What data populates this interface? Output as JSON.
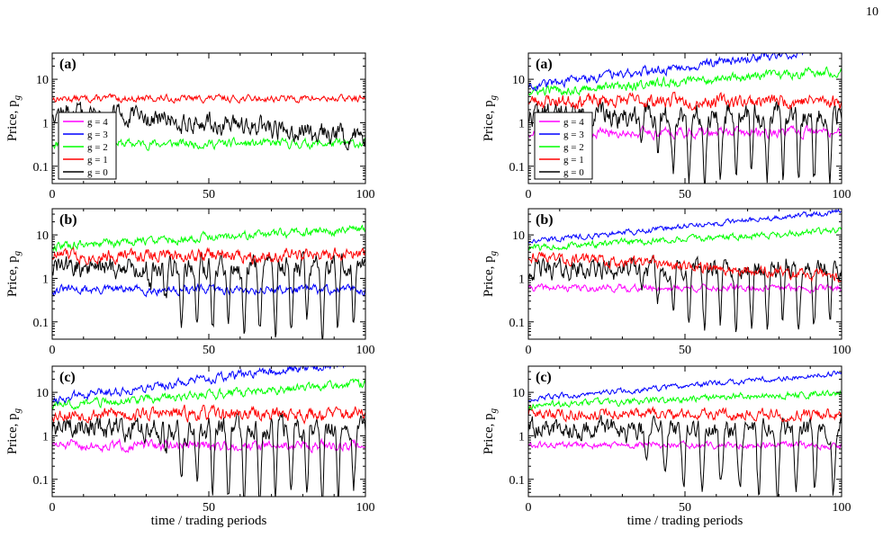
{
  "page": {
    "number": "10"
  },
  "legend": {
    "entries": [
      {
        "label": "g = 4",
        "color": "#ff00ff"
      },
      {
        "label": "g = 3",
        "color": "#0000ff"
      },
      {
        "label": "g = 2",
        "color": "#00ff00"
      },
      {
        "label": "g = 1",
        "color": "#ff0000"
      },
      {
        "label": "g = 0",
        "color": "#000000"
      }
    ]
  },
  "axes": {
    "ylabel": "Price, p",
    "ylabel_subscript": "g",
    "xlabel": "time / trading periods",
    "xticks": [
      0,
      50,
      100
    ],
    "xtick_labels": [
      "0",
      "50",
      "100"
    ],
    "yticks": [
      0.1,
      1,
      10
    ],
    "ytick_labels": [
      "0.1",
      "1",
      "10"
    ],
    "xlim": [
      0,
      100
    ],
    "ylim": [
      0.04,
      40
    ],
    "yscale": "log"
  },
  "chart_data": [
    {
      "type": "line",
      "panel_label": "(a)",
      "legend": true,
      "xlim": [
        0,
        100
      ],
      "ylim": [
        0.04,
        40
      ],
      "yscale": "log",
      "series": [
        {
          "name": "g = 2",
          "color": "#00ff00",
          "level": 0.33,
          "amp": 0.2,
          "seed": 11
        },
        {
          "name": "g = 0",
          "color": "#000000",
          "level": 1.9,
          "amp": 0.45,
          "trend": -0.6,
          "seed": 12
        },
        {
          "name": "g = 1",
          "color": "#ff0000",
          "level": 3.6,
          "amp": 0.15,
          "seed": 13
        }
      ]
    },
    {
      "type": "line",
      "panel_label": "(a)",
      "legend": true,
      "xlim": [
        0,
        100
      ],
      "ylim": [
        0.04,
        40
      ],
      "yscale": "log",
      "series": [
        {
          "name": "g = 4",
          "color": "#ff00ff",
          "level": 0.6,
          "amp": 0.22,
          "seed": 21
        },
        {
          "name": "g = 0",
          "color": "#000000",
          "level": 1.5,
          "amp": 0.5,
          "osc": 1.4,
          "period": 5,
          "oscStart": 30,
          "seed": 22
        },
        {
          "name": "g = 1",
          "color": "#ff0000",
          "level": 3.2,
          "amp": 0.3,
          "seed": 23
        },
        {
          "name": "g = 2",
          "color": "#00ff00",
          "level": 5,
          "amp": 0.22,
          "trend": 0.5,
          "seed": 24
        },
        {
          "name": "g = 3",
          "color": "#0000ff",
          "level": 7,
          "amp": 0.2,
          "trend": 0.9,
          "seed": 25
        }
      ]
    },
    {
      "type": "line",
      "panel_label": "(b)",
      "legend": false,
      "xlim": [
        0,
        100
      ],
      "ylim": [
        0.04,
        40
      ],
      "yscale": "log",
      "series": [
        {
          "name": "g = 3",
          "color": "#0000ff",
          "level": 0.55,
          "amp": 0.2,
          "seed": 31
        },
        {
          "name": "g = 0",
          "color": "#000000",
          "level": 1.8,
          "amp": 0.5,
          "osc": 1.4,
          "period": 5,
          "oscStart": 25,
          "seed": 32
        },
        {
          "name": "g = 1",
          "color": "#ff0000",
          "level": 3.4,
          "amp": 0.3,
          "seed": 33
        },
        {
          "name": "g = 2",
          "color": "#00ff00",
          "level": 5.5,
          "amp": 0.2,
          "trend": 0.4,
          "seed": 34
        }
      ]
    },
    {
      "type": "line",
      "panel_label": "(b)",
      "legend": false,
      "xlim": [
        0,
        100
      ],
      "ylim": [
        0.04,
        40
      ],
      "yscale": "log",
      "series": [
        {
          "name": "g = 4",
          "color": "#ff00ff",
          "level": 0.6,
          "amp": 0.15,
          "seed": 41
        },
        {
          "name": "g = 0",
          "color": "#000000",
          "level": 1.6,
          "amp": 0.45,
          "osc": 1.3,
          "period": 5,
          "oscStart": 30,
          "seed": 42
        },
        {
          "name": "g = 1",
          "color": "#ff0000",
          "level": 3.4,
          "amp": 0.25,
          "trend": -0.5,
          "seed": 43
        },
        {
          "name": "g = 2",
          "color": "#00ff00",
          "level": 5,
          "amp": 0.15,
          "trend": 0.4,
          "seed": 44
        },
        {
          "name": "g = 3",
          "color": "#0000ff",
          "level": 7,
          "amp": 0.12,
          "trend": 0.7,
          "seed": 45
        }
      ]
    },
    {
      "type": "line",
      "panel_label": "(c)",
      "legend": false,
      "xlim": [
        0,
        100
      ],
      "ylim": [
        0.04,
        40
      ],
      "yscale": "log",
      "series": [
        {
          "name": "g = 4",
          "color": "#ff00ff",
          "level": 0.6,
          "amp": 0.22,
          "seed": 51
        },
        {
          "name": "g = 0",
          "color": "#000000",
          "level": 1.5,
          "amp": 0.5,
          "osc": 1.5,
          "period": 5,
          "oscStart": 30,
          "seed": 52
        },
        {
          "name": "g = 1",
          "color": "#ff0000",
          "level": 3.2,
          "amp": 0.3,
          "seed": 53
        },
        {
          "name": "g = 2",
          "color": "#00ff00",
          "level": 5,
          "amp": 0.2,
          "trend": 0.5,
          "seed": 54
        },
        {
          "name": "g = 3",
          "color": "#0000ff",
          "level": 7,
          "amp": 0.2,
          "trend": 0.9,
          "seed": 55
        }
      ]
    },
    {
      "type": "line",
      "panel_label": "(c)",
      "legend": false,
      "xlim": [
        0,
        100
      ],
      "ylim": [
        0.04,
        40
      ],
      "yscale": "log",
      "series": [
        {
          "name": "g = 4",
          "color": "#ff00ff",
          "level": 0.6,
          "amp": 0.15,
          "seed": 61
        },
        {
          "name": "g = 0",
          "color": "#000000",
          "level": 1.5,
          "amp": 0.45,
          "osc": 1.4,
          "period": 6,
          "oscStart": 30,
          "seed": 62
        },
        {
          "name": "g = 1",
          "color": "#ff0000",
          "level": 3.2,
          "amp": 0.25,
          "seed": 63
        },
        {
          "name": "g = 2",
          "color": "#00ff00",
          "level": 5,
          "amp": 0.15,
          "trend": 0.3,
          "seed": 64
        },
        {
          "name": "g = 3",
          "color": "#0000ff",
          "level": 7,
          "amp": 0.12,
          "trend": 0.6,
          "seed": 65
        }
      ]
    }
  ]
}
